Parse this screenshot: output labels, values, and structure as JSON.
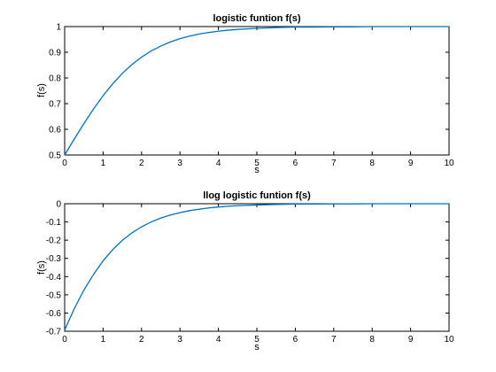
{
  "chart_data": [
    {
      "type": "line",
      "title": "logistic funtion f(s)",
      "xlabel": "s",
      "ylabel": "f(s)",
      "xlim": [
        0,
        10
      ],
      "ylim": [
        0.5,
        1
      ],
      "xticks": [
        "0",
        "1",
        "2",
        "3",
        "4",
        "5",
        "6",
        "7",
        "8",
        "9",
        "10"
      ],
      "yticks": [
        "0.5",
        "0.6",
        "0.7",
        "0.8",
        "0.9",
        "1"
      ],
      "grid": false,
      "color": "#0072bd",
      "series": [
        {
          "x": [
            0,
            0.25,
            0.5,
            0.75,
            1,
            1.25,
            1.5,
            1.75,
            2,
            2.25,
            2.5,
            2.75,
            3,
            3.25,
            3.5,
            3.75,
            4,
            4.25,
            4.5,
            4.75,
            5,
            5.5,
            6,
            6.5,
            7,
            7.5,
            8,
            8.5,
            9,
            9.5,
            10
          ],
          "y": [
            0.5,
            0.562,
            0.622,
            0.679,
            0.731,
            0.777,
            0.818,
            0.852,
            0.881,
            0.905,
            0.924,
            0.94,
            0.953,
            0.963,
            0.971,
            0.977,
            0.982,
            0.986,
            0.989,
            0.991,
            0.993,
            0.996,
            0.998,
            0.998,
            0.999,
            0.999,
            1.0,
            1.0,
            1.0,
            1.0,
            1.0
          ]
        }
      ]
    },
    {
      "type": "line",
      "title": "llog logistic funtion f(s)",
      "xlabel": "s",
      "ylabel": "f(s)",
      "xlim": [
        0,
        10
      ],
      "ylim": [
        -0.7,
        0
      ],
      "xticks": [
        "0",
        "1",
        "2",
        "3",
        "4",
        "5",
        "6",
        "7",
        "8",
        "9",
        "10"
      ],
      "yticks": [
        "-0.7",
        "-0.6",
        "-0.5",
        "-0.4",
        "-0.3",
        "-0.2",
        "-0.1",
        "0"
      ],
      "grid": false,
      "color": "#0072bd",
      "series": [
        {
          "x": [
            0,
            0.25,
            0.5,
            0.75,
            1,
            1.25,
            1.5,
            1.75,
            2,
            2.25,
            2.5,
            2.75,
            3,
            3.25,
            3.5,
            3.75,
            4,
            4.25,
            4.5,
            4.75,
            5,
            5.5,
            6,
            6.5,
            7,
            7.5,
            8,
            8.5,
            9,
            9.5,
            10
          ],
          "y": [
            -0.693,
            -0.576,
            -0.474,
            -0.388,
            -0.313,
            -0.252,
            -0.201,
            -0.16,
            -0.127,
            -0.1,
            -0.079,
            -0.062,
            -0.049,
            -0.038,
            -0.03,
            -0.023,
            -0.018,
            -0.014,
            -0.011,
            -0.009,
            -0.007,
            -0.004,
            -0.002,
            -0.002,
            -0.001,
            -0.001,
            0.0,
            0.0,
            0.0,
            0.0,
            0.0
          ]
        }
      ]
    }
  ]
}
